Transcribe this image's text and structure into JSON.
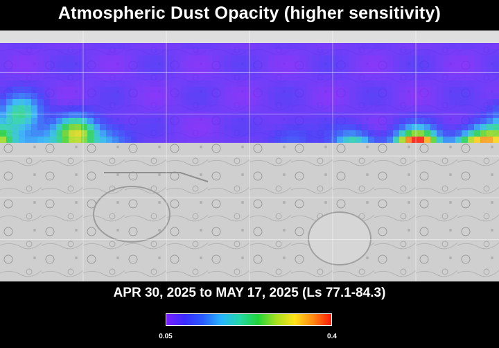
{
  "title": "Atmospheric Dust Opacity (higher sensitivity)",
  "date_range": "APR 30, 2025 to MAY 17, 2025 (Ls 77.1-84.3)",
  "colorbar": {
    "min_label": "0.05",
    "max_label": "0.4",
    "min_value": 0.05,
    "max_value": 0.4,
    "colors": [
      "#7a1fff",
      "#3a2cff",
      "#2a5cff",
      "#27b5ff",
      "#24d6a8",
      "#21d43a",
      "#a8e020",
      "#ffe21a",
      "#ff8a12",
      "#ff1a0a"
    ]
  },
  "dust_hotspots": [
    {
      "lon": -165,
      "lat": 30,
      "opacity": 0.2
    },
    {
      "lon": -125,
      "lat": 15,
      "opacity": 0.28
    },
    {
      "lon": -150,
      "lat": 5,
      "opacity": 0.15
    },
    {
      "lon": -100,
      "lat": 10,
      "opacity": 0.13
    },
    {
      "lon": 75,
      "lat": 3,
      "opacity": 0.26
    },
    {
      "lon": 122,
      "lat": 5,
      "opacity": 0.37
    },
    {
      "lon": 118,
      "lat": -2,
      "opacity": 0.36
    },
    {
      "lon": 160,
      "lat": 2,
      "opacity": 0.28
    },
    {
      "lon": 172,
      "lat": 8,
      "opacity": 0.22
    },
    {
      "lon": -178,
      "lat": 10,
      "opacity": 0.14
    },
    {
      "lon": 30,
      "lat": 12,
      "opacity": 0.1
    }
  ]
}
